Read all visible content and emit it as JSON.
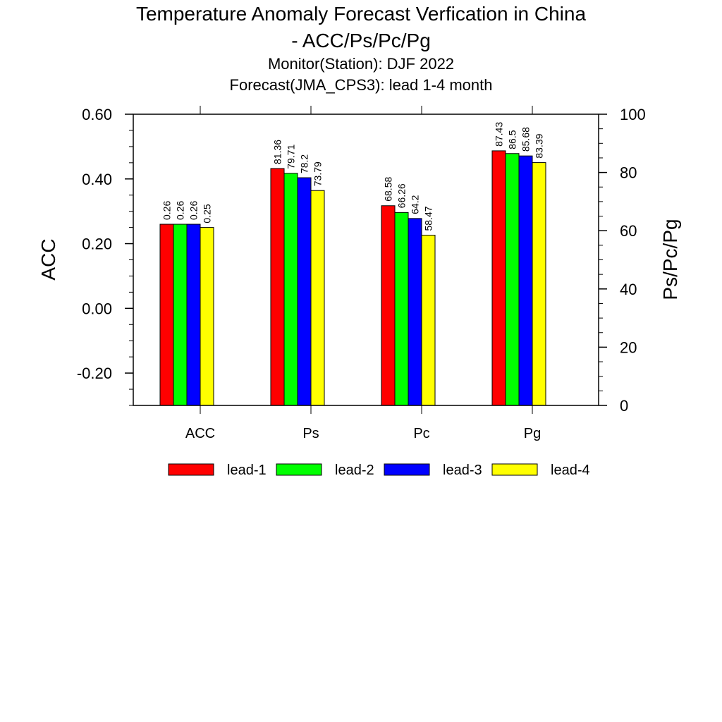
{
  "title": {
    "line1": "Temperature Anomaly Forecast Verfication in China",
    "line2": "- ACC/Ps/Pc/Pg",
    "line3": "Monitor(Station): DJF 2022",
    "line4": "Forecast(JMA_CPS3): lead 1-4 month"
  },
  "chart_data": {
    "type": "bar",
    "categories": [
      "ACC",
      "Ps",
      "Pc",
      "Pg"
    ],
    "ylabel": "ACC",
    "y2label": "Ps/Pc/Pg",
    "ylim": [
      -0.3,
      0.6
    ],
    "y2lim": [
      0,
      100
    ],
    "y_ticks": [
      "0.60",
      "0.40",
      "0.20",
      "0.00",
      "-0.20"
    ],
    "y2_ticks": [
      "100",
      "80",
      "60",
      "40",
      "20",
      "0"
    ],
    "grid": false,
    "legend_position": "bottom",
    "series": [
      {
        "name": "lead-1",
        "color": "#ff0000",
        "values": [
          0.26,
          81.36,
          68.58,
          87.43
        ],
        "labels": [
          "0.26",
          "81.36",
          "68.58",
          "87.43"
        ]
      },
      {
        "name": "lead-2",
        "color": "#00ff00",
        "values": [
          0.26,
          79.71,
          66.26,
          86.5
        ],
        "labels": [
          "0.26",
          "79.71",
          "66.26",
          "86.5"
        ]
      },
      {
        "name": "lead-3",
        "color": "#0000ff",
        "values": [
          0.26,
          78.2,
          64.2,
          85.68
        ],
        "labels": [
          "0.26",
          "78.2",
          "64.2",
          "85.68"
        ]
      },
      {
        "name": "lead-4",
        "color": "#ffff00",
        "values": [
          0.25,
          73.79,
          58.47,
          83.39
        ],
        "labels": [
          "0.25",
          "73.79",
          "58.47",
          "83.39"
        ]
      }
    ]
  }
}
